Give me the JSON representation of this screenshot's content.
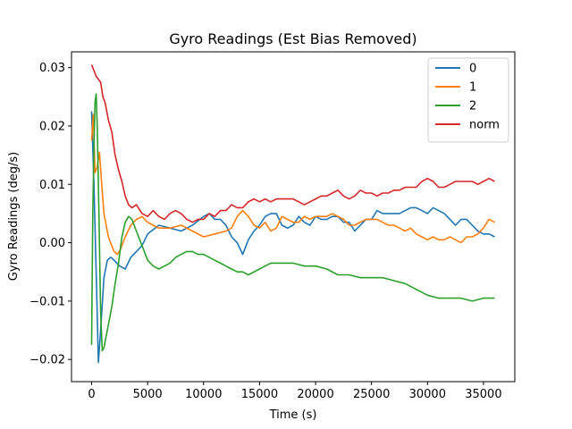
{
  "chart_data": {
    "type": "line",
    "title": "Gyro Readings (Est Bias Removed)",
    "xlabel": "Time (s)",
    "ylabel": "Gyro Readings (deg/s)",
    "xlim": [
      -1800,
      37800
    ],
    "ylim": [
      -0.0238,
      0.0327
    ],
    "xticks": [
      0,
      5000,
      10000,
      15000,
      20000,
      25000,
      30000,
      35000
    ],
    "xtick_labels": [
      "0",
      "5000",
      "10000",
      "15000",
      "20000",
      "25000",
      "30000",
      "35000"
    ],
    "yticks": [
      -0.02,
      -0.01,
      0.0,
      0.01,
      0.02,
      0.03
    ],
    "ytick_labels": [
      "−0.02",
      "−0.01",
      "0.00",
      "0.01",
      "0.02",
      "0.03"
    ],
    "grid": false,
    "legend_position": "top-right",
    "series": [
      {
        "name": "0",
        "color": "#1f77b4",
        "x": [
          0,
          200,
          400,
          600,
          800,
          1100,
          1400,
          1700,
          2000,
          2500,
          3000,
          3500,
          4000,
          4500,
          5000,
          6000,
          7000,
          8000,
          9000,
          10000,
          10500,
          11000,
          11500,
          12000,
          12500,
          13000,
          13500,
          14000,
          14500,
          15000,
          15500,
          16000,
          16500,
          17000,
          17500,
          18000,
          18500,
          19000,
          19500,
          20000,
          20500,
          21000,
          21500,
          22000,
          22500,
          23000,
          23500,
          24000,
          24500,
          25000,
          25500,
          26000,
          26500,
          27000,
          27500,
          28000,
          28500,
          29000,
          29500,
          30000,
          30500,
          31000,
          31500,
          32000,
          32500,
          33000,
          33500,
          34000,
          34500,
          35000,
          35500,
          36000
        ],
        "y": [
          0.0225,
          0.01,
          -0.005,
          -0.0205,
          -0.015,
          -0.006,
          -0.003,
          -0.0025,
          -0.003,
          -0.004,
          -0.0045,
          -0.0025,
          -0.0015,
          -0.0005,
          0.0015,
          0.003,
          0.0025,
          0.002,
          0.003,
          0.0045,
          0.005,
          0.004,
          0.004,
          0.003,
          0.001,
          0.0,
          -0.002,
          0.0005,
          0.002,
          0.003,
          0.0045,
          0.005,
          0.005,
          0.003,
          0.0025,
          0.003,
          0.0045,
          0.0035,
          0.003,
          0.0045,
          0.004,
          0.004,
          0.0045,
          0.0045,
          0.0035,
          0.0035,
          0.002,
          0.003,
          0.004,
          0.004,
          0.0055,
          0.005,
          0.005,
          0.005,
          0.005,
          0.0055,
          0.006,
          0.006,
          0.0055,
          0.005,
          0.006,
          0.0055,
          0.005,
          0.004,
          0.003,
          0.004,
          0.004,
          0.003,
          0.002,
          0.0015,
          0.0015,
          0.001
        ]
      },
      {
        "name": "1",
        "color": "#ff7f0e",
        "x": [
          0,
          150,
          300,
          500,
          700,
          900,
          1100,
          1300,
          1500,
          1700,
          2000,
          2300,
          2600,
          3000,
          3500,
          4000,
          4500,
          5000,
          5500,
          6000,
          7000,
          8000,
          9000,
          10000,
          11000,
          12000,
          12500,
          13000,
          13500,
          14000,
          14500,
          15000,
          15500,
          16000,
          16500,
          17000,
          17500,
          18000,
          18500,
          19000,
          19500,
          20000,
          20500,
          21000,
          21500,
          22000,
          22500,
          23000,
          23500,
          24000,
          24500,
          25000,
          25500,
          26000,
          26500,
          27000,
          27500,
          28000,
          28500,
          29000,
          29500,
          30000,
          30500,
          31000,
          31500,
          32000,
          32500,
          33000,
          33500,
          34000,
          34500,
          35000,
          35500,
          36000
        ],
        "y": [
          0.0175,
          0.022,
          0.012,
          0.013,
          0.0155,
          0.01,
          0.005,
          0.003,
          0.001,
          0.0,
          -0.0015,
          -0.002,
          -0.001,
          0.001,
          0.003,
          0.004,
          0.0045,
          0.0035,
          0.003,
          0.0025,
          0.0025,
          0.003,
          0.002,
          0.001,
          0.0015,
          0.002,
          0.0025,
          0.0045,
          0.0055,
          0.0045,
          0.003,
          0.0025,
          0.0035,
          0.002,
          0.0025,
          0.0045,
          0.004,
          0.0035,
          0.0035,
          0.0045,
          0.004,
          0.0045,
          0.0045,
          0.0045,
          0.005,
          0.0045,
          0.004,
          0.003,
          0.003,
          0.0035,
          0.004,
          0.004,
          0.004,
          0.0035,
          0.003,
          0.003,
          0.0025,
          0.002,
          0.0025,
          0.0015,
          0.001,
          0.0005,
          0.001,
          0.0005,
          0.0005,
          0.001,
          0.0005,
          0.0,
          0.001,
          0.001,
          0.0015,
          0.0025,
          0.004,
          0.0035
        ]
      },
      {
        "name": "2",
        "color": "#2ca02c",
        "x": [
          0,
          100,
          200,
          300,
          400,
          500,
          650,
          800,
          950,
          1100,
          1300,
          1500,
          1800,
          2100,
          2400,
          2700,
          3000,
          3300,
          3600,
          4000,
          4500,
          5000,
          5500,
          6000,
          6500,
          7000,
          7500,
          8000,
          8500,
          9000,
          9500,
          10000,
          10500,
          11000,
          11500,
          12000,
          12500,
          13000,
          13500,
          14000,
          14500,
          15000,
          15500,
          16000,
          17000,
          18000,
          19000,
          20000,
          21000,
          22000,
          23000,
          24000,
          25000,
          26000,
          27000,
          28000,
          29000,
          30000,
          31000,
          32000,
          33000,
          34000,
          35000,
          36000
        ],
        "y": [
          -0.0175,
          0.005,
          0.016,
          0.024,
          0.0255,
          0.02,
          0.005,
          -0.012,
          -0.0185,
          -0.018,
          -0.016,
          -0.014,
          -0.011,
          -0.007,
          -0.0035,
          0.001,
          0.0035,
          0.0045,
          0.004,
          0.002,
          -0.0005,
          -0.003,
          -0.004,
          -0.0045,
          -0.004,
          -0.0035,
          -0.0025,
          -0.002,
          -0.0015,
          -0.0015,
          -0.002,
          -0.002,
          -0.0025,
          -0.003,
          -0.0035,
          -0.004,
          -0.0045,
          -0.005,
          -0.005,
          -0.0055,
          -0.005,
          -0.0045,
          -0.004,
          -0.0035,
          -0.0035,
          -0.0035,
          -0.004,
          -0.004,
          -0.0045,
          -0.0055,
          -0.0055,
          -0.006,
          -0.006,
          -0.006,
          -0.0065,
          -0.007,
          -0.008,
          -0.009,
          -0.0095,
          -0.0095,
          -0.0095,
          -0.01,
          -0.0095,
          -0.0095
        ]
      },
      {
        "name": "norm",
        "color": "#d62728",
        "x": [
          0,
          200,
          400,
          600,
          800,
          1000,
          1200,
          1500,
          1800,
          2100,
          2400,
          2700,
          3000,
          3300,
          3600,
          4000,
          4500,
          5000,
          5500,
          6000,
          6500,
          7000,
          7500,
          8000,
          8500,
          9000,
          9500,
          10000,
          10500,
          11000,
          11500,
          12000,
          12500,
          13000,
          13500,
          14000,
          14500,
          15000,
          15500,
          16000,
          16500,
          17000,
          17500,
          18000,
          18500,
          19000,
          19500,
          20000,
          20500,
          21000,
          21500,
          22000,
          22500,
          23000,
          23500,
          24000,
          24500,
          25000,
          25500,
          26000,
          26500,
          27000,
          27500,
          28000,
          28500,
          29000,
          29500,
          30000,
          30500,
          31000,
          31500,
          32000,
          32500,
          33000,
          33500,
          34000,
          34500,
          35000,
          35500,
          36000
        ],
        "y": [
          0.0305,
          0.0295,
          0.0285,
          0.028,
          0.0275,
          0.025,
          0.024,
          0.021,
          0.019,
          0.015,
          0.0125,
          0.0105,
          0.008,
          0.0065,
          0.006,
          0.0065,
          0.005,
          0.0045,
          0.0055,
          0.0045,
          0.004,
          0.005,
          0.0055,
          0.005,
          0.004,
          0.0035,
          0.004,
          0.004,
          0.005,
          0.0045,
          0.0055,
          0.0055,
          0.0065,
          0.006,
          0.006,
          0.007,
          0.0075,
          0.007,
          0.0075,
          0.007,
          0.0075,
          0.0075,
          0.0075,
          0.0075,
          0.007,
          0.0065,
          0.007,
          0.0075,
          0.008,
          0.008,
          0.0085,
          0.009,
          0.008,
          0.0075,
          0.008,
          0.009,
          0.0085,
          0.0085,
          0.008,
          0.0085,
          0.0085,
          0.009,
          0.009,
          0.0095,
          0.0095,
          0.0095,
          0.0105,
          0.011,
          0.0105,
          0.0095,
          0.0095,
          0.01,
          0.0105,
          0.0105,
          0.0105,
          0.0105,
          0.01,
          0.0105,
          0.011,
          0.0105
        ]
      }
    ]
  }
}
